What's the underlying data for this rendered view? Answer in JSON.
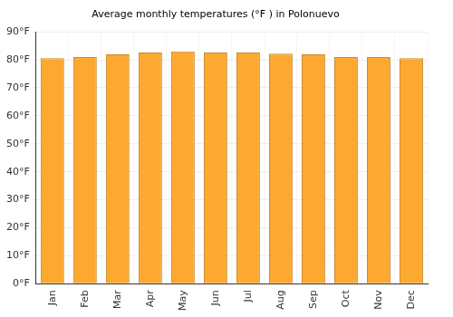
{
  "chart_data": {
    "type": "bar",
    "title": "Average monthly temperatures (°F ) in Polonuevo",
    "categories": [
      "Jan",
      "Feb",
      "Mar",
      "Apr",
      "May",
      "Jun",
      "Jul",
      "Aug",
      "Sep",
      "Oct",
      "Nov",
      "Dec"
    ],
    "values": [
      80.6,
      81,
      82,
      82.6,
      83,
      82.6,
      82.6,
      82.2,
      82,
      81,
      81,
      80.6
    ],
    "color": "#fca831",
    "ylim": [
      0,
      90
    ],
    "yticks": [
      {
        "value": 0,
        "label": "0°F"
      },
      {
        "value": 10,
        "label": "10°F"
      },
      {
        "value": 20,
        "label": "20°F"
      },
      {
        "value": 30,
        "label": "30°F"
      },
      {
        "value": 40,
        "label": "40°F"
      },
      {
        "value": 50,
        "label": "50°F"
      },
      {
        "value": 60,
        "label": "60°F"
      },
      {
        "value": 70,
        "label": "70°F"
      },
      {
        "value": 80,
        "label": "80°F"
      },
      {
        "value": 90,
        "label": "90°F"
      }
    ],
    "grid": true
  }
}
